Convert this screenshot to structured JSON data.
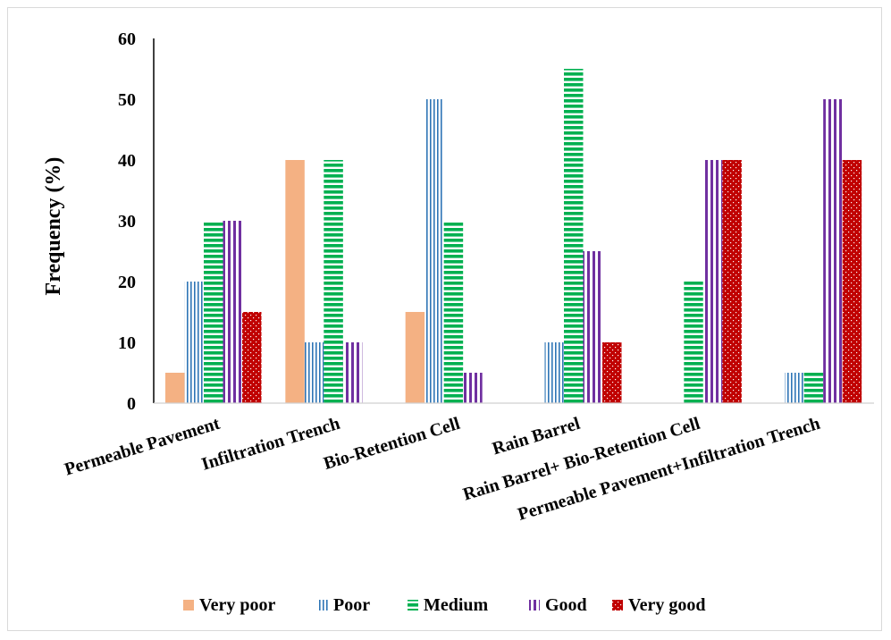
{
  "chart_data": {
    "type": "bar",
    "title": "",
    "xlabel": "",
    "ylabel": "Frequency (%)",
    "ylim": [
      0,
      60
    ],
    "yticks": [
      0,
      10,
      20,
      30,
      40,
      50,
      60
    ],
    "grid": false,
    "legend_position": "bottom",
    "categories": [
      "Permeable Pavement",
      "Infiltration Trench",
      "Bio-Retention Cell",
      "Rain Barrel",
      "Rain Barrel+ Bio-Retention Cell",
      "Permeable Pavement+Infiltration Trench"
    ],
    "series": [
      {
        "name": "Very poor",
        "color": "#f4b183",
        "pattern": "solid",
        "values": [
          5,
          40,
          15,
          0,
          0,
          0
        ]
      },
      {
        "name": "Poor",
        "color": "#2e75b6",
        "pattern": "vertical-lines",
        "values": [
          20,
          10,
          50,
          10,
          0,
          5
        ]
      },
      {
        "name": "Medium",
        "color": "#00b050",
        "pattern": "horizontal-lines",
        "values": [
          30,
          40,
          30,
          55,
          20,
          5
        ]
      },
      {
        "name": "Good",
        "color": "#7030a0",
        "pattern": "wide-vertical-lines",
        "values": [
          30,
          10,
          5,
          25,
          40,
          50
        ]
      },
      {
        "name": "Very good",
        "color": "#c00000",
        "pattern": "dotted",
        "values": [
          15,
          0,
          0,
          10,
          40,
          40
        ]
      }
    ]
  }
}
